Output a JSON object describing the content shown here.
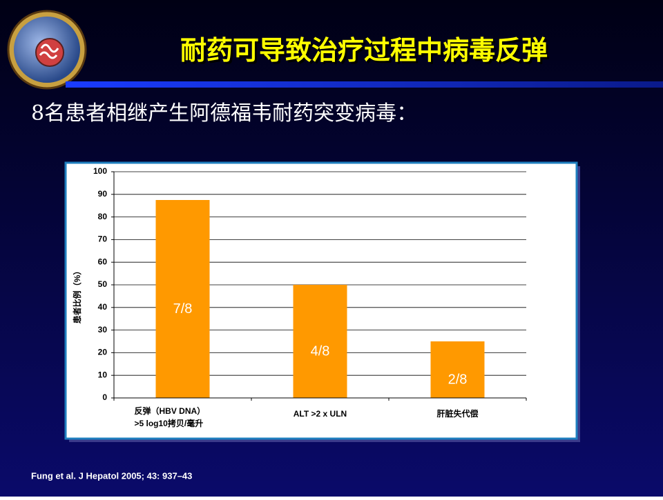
{
  "title": "耐药可导致治疗过程中病毒反弹",
  "subtitle": "8名患者相继产生阿德福韦耐药突变病毒：",
  "citation": "Fung et al. J Hepatol 2005; 43: 937–43",
  "chart_data": {
    "type": "bar",
    "y_label": "患者比例（%）",
    "categories": [
      [
        "反弹（HBV DNA）",
        ">5 log10拷贝/毫升"
      ],
      [
        "ALT >2 x ULN"
      ],
      [
        "肝脏失代偿"
      ]
    ],
    "values": [
      87.5,
      50,
      25
    ],
    "value_labels": [
      "7/8",
      "4/8",
      "2/8"
    ],
    "color": "#ff9900",
    "ylim": [
      0,
      100
    ],
    "yticks": [
      0,
      10,
      20,
      30,
      40,
      50,
      60,
      70,
      80,
      90,
      100
    ],
    "grid": true
  }
}
